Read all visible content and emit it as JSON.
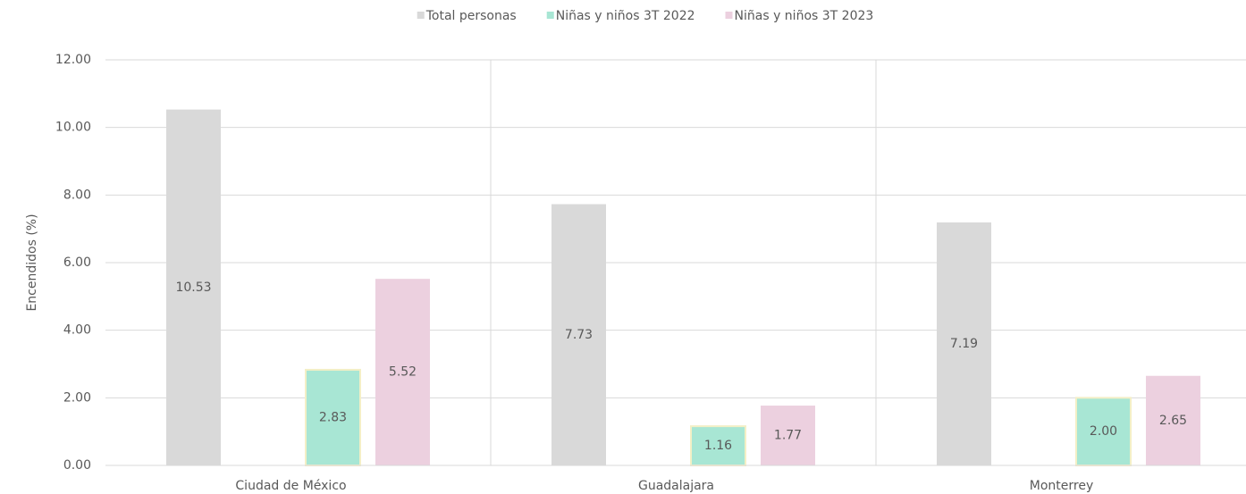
{
  "chart_data": {
    "type": "bar",
    "y_axis_label": "Encendidos (%)",
    "categories": [
      "Ciudad de México",
      "Guadalajara",
      "Monterrey"
    ],
    "series": [
      {
        "name": "Total personas",
        "color": "#d9d9d9",
        "values": [
          10.53,
          7.73,
          7.19
        ],
        "value_labels": [
          "10.53",
          "7.73",
          "7.19"
        ]
      },
      {
        "name": "Niñas y niños 3T 2022",
        "color": "#a8e6d4",
        "values": [
          2.83,
          1.16,
          2.0
        ],
        "value_labels": [
          "2.83",
          "1.16",
          "2.00"
        ]
      },
      {
        "name": "Niñas y niños 3T 2023",
        "color": "#ecd0df",
        "values": [
          5.52,
          1.77,
          2.65
        ],
        "value_labels": [
          "5.52",
          "1.77",
          "2.65"
        ]
      }
    ],
    "ylim": [
      0,
      12
    ],
    "yticks": [
      {
        "value": 0,
        "label": "0.00"
      },
      {
        "value": 2,
        "label": "2.00"
      },
      {
        "value": 4,
        "label": "4.00"
      },
      {
        "value": 6,
        "label": "6.00"
      },
      {
        "value": 8,
        "label": "8.00"
      },
      {
        "value": 10,
        "label": "10.00"
      },
      {
        "value": 12,
        "label": "12.00"
      }
    ],
    "grid": true,
    "legend": "top"
  }
}
